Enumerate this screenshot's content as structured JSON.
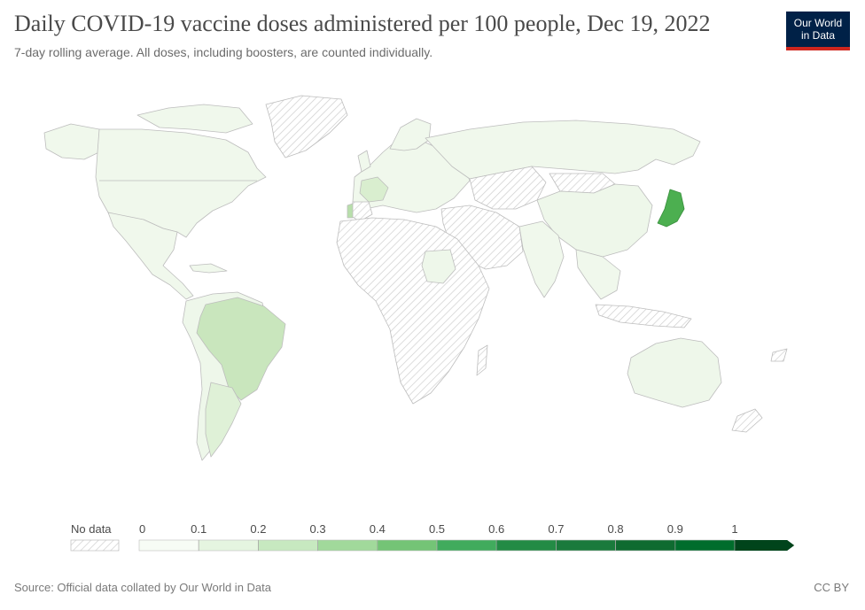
{
  "header": {
    "title": "Daily COVID-19 vaccine doses administered per 100 people, Dec 19, 2022",
    "subtitle": "7-day rolling average. All doses, including boosters, are counted individually."
  },
  "logo": {
    "line1": "Our World",
    "line2": "in Data",
    "bg_color": "#002147",
    "accent_color": "#ce261e"
  },
  "chart_data": {
    "type": "choropleth",
    "title": "Daily COVID-19 vaccine doses administered per 100 people, Dec 19, 2022",
    "subtitle": "7-day rolling average. All doses, including boosters, are counted individually.",
    "legend": {
      "no_data_label": "No data",
      "bins": [
        "0",
        "0.1",
        "0.2",
        "0.3",
        "0.4",
        "0.5",
        "0.6",
        "0.7",
        "0.8",
        "0.9",
        "1"
      ],
      "colors": [
        "#f7fcf5",
        "#e5f5e0",
        "#c7e9c0",
        "#a1d99b",
        "#74c476",
        "#41ab5d",
        "#238b45",
        "#1a7a3c",
        "#0f6b30",
        "#006d2c",
        "#00441b"
      ]
    },
    "regions": [
      {
        "name": "North America",
        "value_bin": "0-0.1",
        "color": "#f0f8ec"
      },
      {
        "name": "South America",
        "value_bin": "0-0.1",
        "color": "#eef7ea"
      },
      {
        "name": "Brazil",
        "value_bin": "0.2-0.3",
        "color": "#c9e6bd"
      },
      {
        "name": "Argentina",
        "value_bin": "0.1-0.2",
        "color": "#dff1d7"
      },
      {
        "name": "France",
        "value_bin": "0.1-0.2",
        "color": "#d9eecf"
      },
      {
        "name": "Portugal",
        "value_bin": "0.2-0.3",
        "color": "#b8dfab"
      },
      {
        "name": "Europe",
        "value_bin": "0-0.1",
        "color": "#f0f8ec"
      },
      {
        "name": "Russia",
        "value_bin": "0-0.1",
        "color": "#f0f8ec"
      },
      {
        "name": "China",
        "value_bin": "0-0.1",
        "color": "#eef7ea"
      },
      {
        "name": "India",
        "value_bin": "0-0.1",
        "color": "#f0f8ec"
      },
      {
        "name": "Japan",
        "value_bin": "0.5-0.6",
        "color": "#4caf50"
      },
      {
        "name": "Australia",
        "value_bin": "0-0.1",
        "color": "#eef7ea"
      },
      {
        "name": "Sudan",
        "value_bin": "0-0.1",
        "color": "#eef7ea"
      },
      {
        "name": "Africa",
        "value_bin": "No data",
        "color": "hatched"
      },
      {
        "name": "Middle East",
        "value_bin": "No data",
        "color": "hatched"
      },
      {
        "name": "Greenland",
        "value_bin": "No data",
        "color": "hatched"
      }
    ]
  },
  "footer": {
    "source": "Source: Official data collated by Our World in Data",
    "license": "CC BY"
  }
}
